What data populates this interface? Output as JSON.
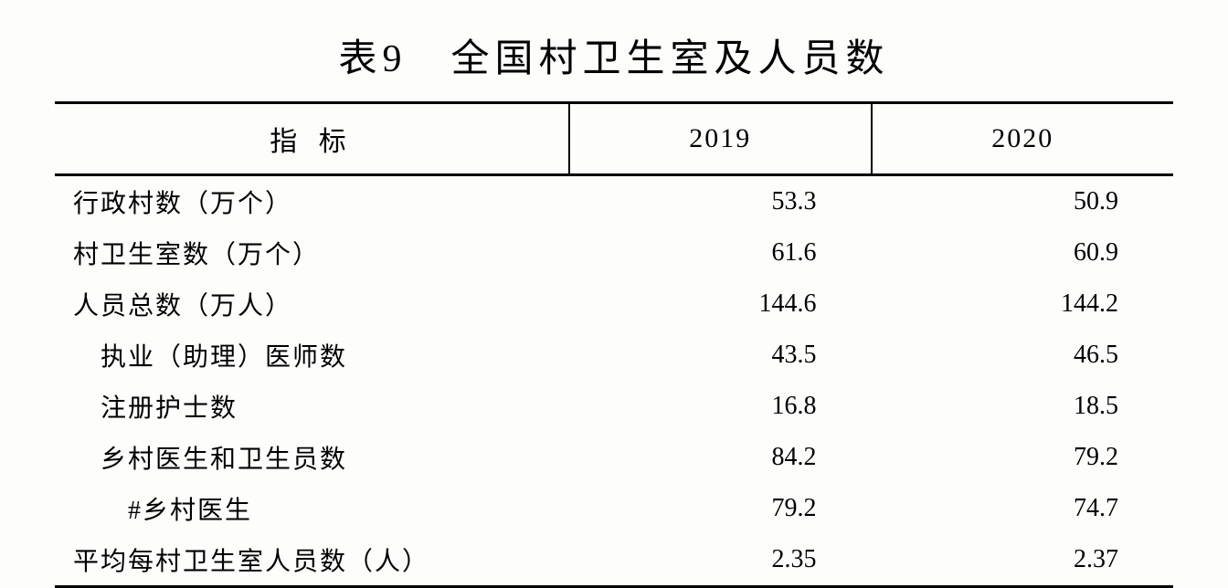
{
  "table": {
    "type": "table",
    "title": "表9　全国村卫生室及人员数",
    "title_fontsize": 42,
    "title_letter_spacing": 6,
    "background_color": "#fdfdfc",
    "text_color": "#000000",
    "border_color": "#000000",
    "border_top_width": 3,
    "border_header_width": 3,
    "border_bottom_width": 3,
    "header_divider_width": 2,
    "font_family_cjk": "SimSun",
    "font_family_numeric": "Times New Roman",
    "body_fontsize": 28,
    "header_fontsize": 30,
    "columns": [
      {
        "key": "label",
        "header": "指 标",
        "width_pct": 46,
        "align": "left"
      },
      {
        "key": "y2019",
        "header": "2019",
        "width_pct": 27,
        "align": "right"
      },
      {
        "key": "y2020",
        "header": "2020",
        "width_pct": 27,
        "align": "right"
      }
    ],
    "rows": [
      {
        "label": "行政村数（万个）",
        "indent": 0,
        "y2019": "53.3",
        "y2020": "50.9"
      },
      {
        "label": "村卫生室数（万个）",
        "indent": 0,
        "y2019": "61.6",
        "y2020": "60.9"
      },
      {
        "label": "人员总数（万人）",
        "indent": 0,
        "y2019": "144.6",
        "y2020": "144.2"
      },
      {
        "label": "执业（助理）医师数",
        "indent": 1,
        "y2019": "43.5",
        "y2020": "46.5"
      },
      {
        "label": "注册护士数",
        "indent": 1,
        "y2019": "16.8",
        "y2020": "18.5"
      },
      {
        "label": "乡村医生和卫生员数",
        "indent": 1,
        "y2019": "84.2",
        "y2020": "79.2"
      },
      {
        "label": "#乡村医生",
        "indent": 2,
        "y2019": "79.2",
        "y2020": "74.7"
      },
      {
        "label": "平均每村卫生室人员数（人）",
        "indent": 0,
        "y2019": "2.35",
        "y2020": "2.37"
      }
    ]
  }
}
